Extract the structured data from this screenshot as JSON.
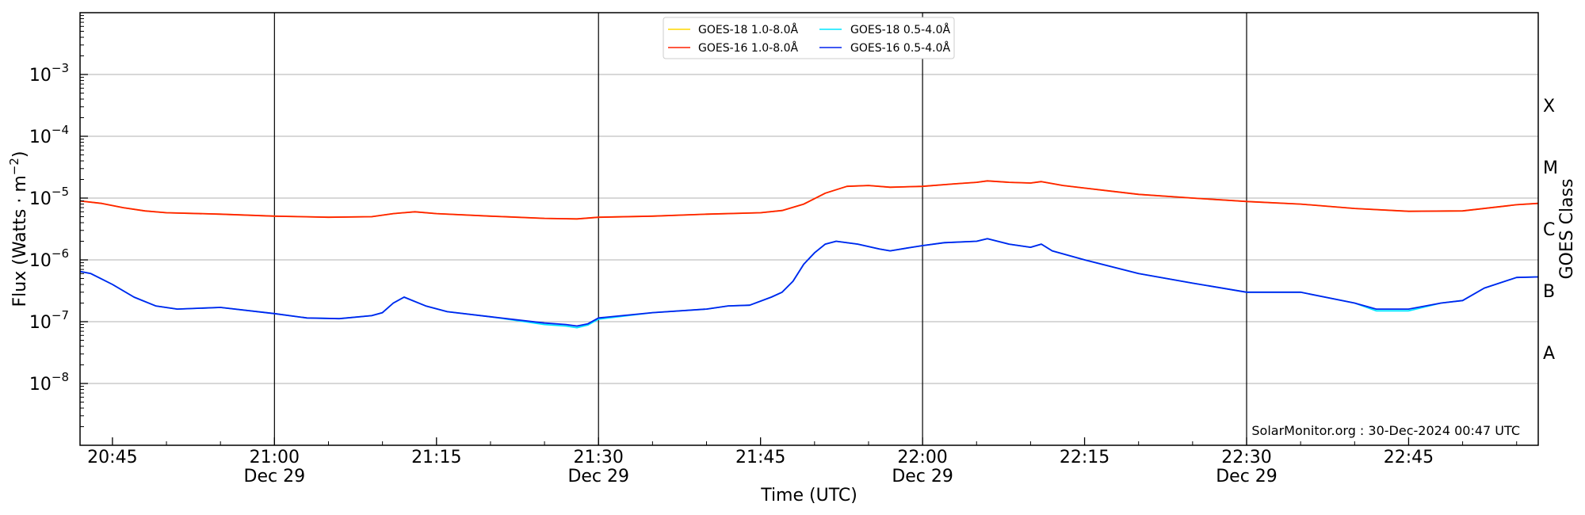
{
  "chart_data": {
    "type": "line",
    "title": "",
    "xlabel": "Time (UTC)",
    "ylabel": "Flux (Watts · m",
    "ylabel_exp": "−2",
    "ylabel_close": ")",
    "y2label": "GOES Class",
    "yscale": "log",
    "xlim": [
      "20:42",
      "22:57"
    ],
    "ylim": [
      1e-09,
      0.01
    ],
    "grid": "horizontal",
    "legend": "top-center",
    "x_ticks": [
      {
        "t": "20:45",
        "label": "20:45",
        "sub": ""
      },
      {
        "t": "21:00",
        "label": "21:00",
        "sub": "Dec 29"
      },
      {
        "t": "21:15",
        "label": "21:15",
        "sub": ""
      },
      {
        "t": "21:30",
        "label": "21:30",
        "sub": "Dec 29"
      },
      {
        "t": "21:45",
        "label": "21:45",
        "sub": ""
      },
      {
        "t": "22:00",
        "label": "22:00",
        "sub": "Dec 29"
      },
      {
        "t": "22:15",
        "label": "22:15",
        "sub": ""
      },
      {
        "t": "22:30",
        "label": "22:30",
        "sub": "Dec 29"
      },
      {
        "t": "22:45",
        "label": "22:45",
        "sub": ""
      }
    ],
    "y_ticks": [
      {
        "exp": -8,
        "label": "10",
        "sup": "−8"
      },
      {
        "exp": -7,
        "label": "10",
        "sup": "−7"
      },
      {
        "exp": -6,
        "label": "10",
        "sup": "−6"
      },
      {
        "exp": -5,
        "label": "10",
        "sup": "−5"
      },
      {
        "exp": -4,
        "label": "10",
        "sup": "−4"
      },
      {
        "exp": -3,
        "label": "10",
        "sup": "−3"
      }
    ],
    "classes": [
      {
        "label": "A",
        "exp": -7.5
      },
      {
        "label": "B",
        "exp": -6.5
      },
      {
        "label": "C",
        "exp": -5.5
      },
      {
        "label": "M",
        "exp": -4.5
      },
      {
        "label": "X",
        "exp": -3.5
      }
    ],
    "vlines": [
      "21:00",
      "21:30",
      "22:00",
      "22:30"
    ],
    "annotation": "SolarMonitor.org : 30-Dec-2024 00:47 UTC",
    "series": [
      {
        "name": "GOES-18 1.0-8.0Å",
        "color": "#ffd700",
        "x": [
          "20:42",
          "20:44",
          "20:46",
          "20:48",
          "20:50",
          "20:55",
          "21:00",
          "21:05",
          "21:09",
          "21:11",
          "21:13",
          "21:15",
          "21:20",
          "21:25",
          "21:28",
          "21:30",
          "21:35",
          "21:40",
          "21:45",
          "21:47",
          "21:49",
          "21:51",
          "21:53",
          "21:55",
          "21:57",
          "22:00",
          "22:03",
          "22:05",
          "22:06",
          "22:08",
          "22:10",
          "22:11",
          "22:13",
          "22:15",
          "22:20",
          "22:25",
          "22:30",
          "22:35",
          "22:40",
          "22:45",
          "22:50",
          "22:55",
          "22:57"
        ],
        "y": [
          9e-06,
          8.2e-06,
          7e-06,
          6.2e-06,
          5.8e-06,
          5.5e-06,
          5.1e-06,
          4.9e-06,
          5e-06,
          5.6e-06,
          6e-06,
          5.6e-06,
          5.1e-06,
          4.7e-06,
          4.6e-06,
          4.9e-06,
          5.1e-06,
          5.5e-06,
          5.8e-06,
          6.3e-06,
          8e-06,
          1.2e-05,
          1.55e-05,
          1.6e-05,
          1.5e-05,
          1.55e-05,
          1.7e-05,
          1.8e-05,
          1.9e-05,
          1.8e-05,
          1.75e-05,
          1.85e-05,
          1.6e-05,
          1.45e-05,
          1.15e-05,
          1e-05,
          8.8e-06,
          8e-06,
          6.8e-06,
          6.1e-06,
          6.2e-06,
          7.8e-06,
          8.2e-06
        ]
      },
      {
        "name": "GOES-16 1.0-8.0Å",
        "color": "#ff2000",
        "x": [
          "20:42",
          "20:44",
          "20:46",
          "20:48",
          "20:50",
          "20:55",
          "21:00",
          "21:05",
          "21:09",
          "21:11",
          "21:13",
          "21:15",
          "21:20",
          "21:25",
          "21:28",
          "21:30",
          "21:35",
          "21:40",
          "21:45",
          "21:47",
          "21:49",
          "21:51",
          "21:53",
          "21:55",
          "21:57",
          "22:00",
          "22:03",
          "22:05",
          "22:06",
          "22:08",
          "22:10",
          "22:11",
          "22:13",
          "22:15",
          "22:20",
          "22:25",
          "22:30",
          "22:35",
          "22:40",
          "22:45",
          "22:50",
          "22:55",
          "22:57"
        ],
        "y": [
          9e-06,
          8.2e-06,
          7e-06,
          6.2e-06,
          5.8e-06,
          5.5e-06,
          5.1e-06,
          4.9e-06,
          5e-06,
          5.6e-06,
          6e-06,
          5.6e-06,
          5.1e-06,
          4.7e-06,
          4.6e-06,
          4.9e-06,
          5.1e-06,
          5.5e-06,
          5.8e-06,
          6.3e-06,
          8e-06,
          1.2e-05,
          1.55e-05,
          1.6e-05,
          1.5e-05,
          1.55e-05,
          1.7e-05,
          1.8e-05,
          1.9e-05,
          1.8e-05,
          1.75e-05,
          1.85e-05,
          1.6e-05,
          1.45e-05,
          1.15e-05,
          1e-05,
          8.8e-06,
          8e-06,
          6.8e-06,
          6.1e-06,
          6.2e-06,
          7.8e-06,
          8.2e-06
        ]
      },
      {
        "name": "GOES-18 0.5-4.0Å",
        "color": "#00e5ff",
        "x": [
          "20:42",
          "20:43",
          "20:45",
          "20:47",
          "20:49",
          "20:51",
          "20:55",
          "21:00",
          "21:03",
          "21:06",
          "21:09",
          "21:10",
          "21:11",
          "21:12",
          "21:14",
          "21:16",
          "21:20",
          "21:25",
          "21:27",
          "21:28",
          "21:29",
          "21:30",
          "21:35",
          "21:40",
          "21:42",
          "21:44",
          "21:46",
          "21:47",
          "21:48",
          "21:49",
          "21:50",
          "21:51",
          "21:52",
          "21:54",
          "21:56",
          "21:57",
          "21:59",
          "22:00",
          "22:02",
          "22:05",
          "22:06",
          "22:08",
          "22:10",
          "22:11",
          "22:12",
          "22:15",
          "22:20",
          "22:25",
          "22:30",
          "22:35",
          "22:40",
          "22:42",
          "22:45",
          "22:48",
          "22:50",
          "22:52",
          "22:55",
          "22:57"
        ],
        "y": [
          6.5e-07,
          6e-07,
          4e-07,
          2.5e-07,
          1.8e-07,
          1.6e-07,
          1.7e-07,
          1.35e-07,
          1.15e-07,
          1.12e-07,
          1.25e-07,
          1.4e-07,
          2e-07,
          2.5e-07,
          1.8e-07,
          1.45e-07,
          1.2e-07,
          9e-08,
          8.5e-08,
          8e-08,
          8.8e-08,
          1.1e-07,
          1.4e-07,
          1.6e-07,
          1.8e-07,
          1.85e-07,
          2.5e-07,
          3e-07,
          4.5e-07,
          8.5e-07,
          1.3e-06,
          1.8e-06,
          2e-06,
          1.8e-06,
          1.5e-06,
          1.4e-06,
          1.6e-06,
          1.7e-06,
          1.9e-06,
          2e-06,
          2.2e-06,
          1.8e-06,
          1.6e-06,
          1.8e-06,
          1.4e-06,
          1e-06,
          6e-07,
          4.2e-07,
          3e-07,
          3e-07,
          2e-07,
          1.5e-07,
          1.5e-07,
          2e-07,
          2.2e-07,
          3.5e-07,
          5.2e-07,
          5.3e-07
        ]
      },
      {
        "name": "GOES-16 0.5-4.0Å",
        "color": "#0022ee",
        "x": [
          "20:42",
          "20:43",
          "20:45",
          "20:47",
          "20:49",
          "20:51",
          "20:55",
          "21:00",
          "21:03",
          "21:06",
          "21:09",
          "21:10",
          "21:11",
          "21:12",
          "21:14",
          "21:16",
          "21:20",
          "21:25",
          "21:27",
          "21:28",
          "21:29",
          "21:30",
          "21:35",
          "21:40",
          "21:42",
          "21:44",
          "21:46",
          "21:47",
          "21:48",
          "21:49",
          "21:50",
          "21:51",
          "21:52",
          "21:54",
          "21:56",
          "21:57",
          "21:59",
          "22:00",
          "22:02",
          "22:05",
          "22:06",
          "22:08",
          "22:10",
          "22:11",
          "22:12",
          "22:15",
          "22:20",
          "22:25",
          "22:30",
          "22:35",
          "22:40",
          "22:42",
          "22:45",
          "22:48",
          "22:50",
          "22:52",
          "22:55",
          "22:57"
        ],
        "y": [
          6.5e-07,
          6e-07,
          4e-07,
          2.5e-07,
          1.8e-07,
          1.6e-07,
          1.7e-07,
          1.35e-07,
          1.15e-07,
          1.12e-07,
          1.25e-07,
          1.4e-07,
          2e-07,
          2.5e-07,
          1.8e-07,
          1.45e-07,
          1.2e-07,
          9.5e-08,
          9e-08,
          8.5e-08,
          9.2e-08,
          1.15e-07,
          1.4e-07,
          1.6e-07,
          1.8e-07,
          1.85e-07,
          2.5e-07,
          3e-07,
          4.5e-07,
          8.5e-07,
          1.3e-06,
          1.8e-06,
          2e-06,
          1.8e-06,
          1.5e-06,
          1.4e-06,
          1.6e-06,
          1.7e-06,
          1.9e-06,
          2e-06,
          2.2e-06,
          1.8e-06,
          1.6e-06,
          1.8e-06,
          1.4e-06,
          1e-06,
          6e-07,
          4.2e-07,
          3e-07,
          3e-07,
          2e-07,
          1.6e-07,
          1.6e-07,
          2e-07,
          2.2e-07,
          3.5e-07,
          5.2e-07,
          5.3e-07
        ]
      }
    ]
  }
}
